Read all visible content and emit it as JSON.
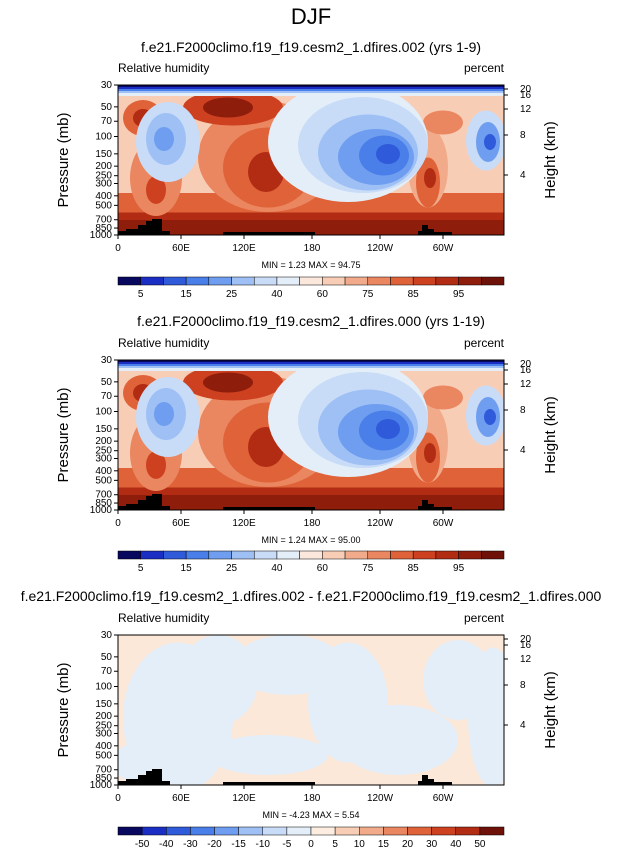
{
  "figure": {
    "title": "DJF"
  },
  "chart_data": [
    {
      "type": "heatmap",
      "title": "f.e21.F2000climo.f19_f19.cesm2_1.dfires.002 (yrs 1-9)",
      "left_label": "Relative humidity",
      "right_label": "percent",
      "xlabel": "",
      "ylabel": "Pressure (mb)",
      "y2label": "Height (km)",
      "x_ticks": [
        "0",
        "60E",
        "120E",
        "180",
        "120W",
        "60W"
      ],
      "y_ticks": [
        "30",
        "50",
        "70",
        "100",
        "150",
        "200",
        "250",
        "300",
        "400",
        "500",
        "700",
        "850",
        "1000"
      ],
      "y2_ticks": [
        "20",
        "16",
        "12",
        "8",
        "4"
      ],
      "ylim": [
        30,
        1000
      ],
      "min_max": "MIN =   1.23   MAX =  94.75",
      "stats": {
        "min": 1.23,
        "max": 94.75
      },
      "colorbar": {
        "labels": [
          "5",
          "15",
          "25",
          "40",
          "60",
          "75",
          "85",
          "95"
        ],
        "colors": [
          "#08085e",
          "#1a2ec4",
          "#2f5bdb",
          "#4a7ee8",
          "#6f9ef0",
          "#9fc0f5",
          "#c8dcf8",
          "#e4eef8",
          "#fbe7dc",
          "#f8cdb6",
          "#f1ab8a",
          "#ea8660",
          "#df6238",
          "#cd4120",
          "#b22c14",
          "#8f1d0c",
          "#6e1209"
        ]
      }
    },
    {
      "type": "heatmap",
      "title": "f.e21.F2000climo.f19_f19.cesm2_1.dfires.000 (yrs 1-19)",
      "left_label": "Relative humidity",
      "right_label": "percent",
      "xlabel": "",
      "ylabel": "Pressure (mb)",
      "y2label": "Height (km)",
      "x_ticks": [
        "0",
        "60E",
        "120E",
        "180",
        "120W",
        "60W"
      ],
      "y_ticks": [
        "30",
        "50",
        "70",
        "100",
        "150",
        "200",
        "250",
        "300",
        "400",
        "500",
        "700",
        "850",
        "1000"
      ],
      "y2_ticks": [
        "20",
        "16",
        "12",
        "8",
        "4"
      ],
      "ylim": [
        30,
        1000
      ],
      "min_max": "MIN =   1.24   MAX =  95.00",
      "stats": {
        "min": 1.24,
        "max": 95.0
      },
      "colorbar": {
        "labels": [
          "5",
          "15",
          "25",
          "40",
          "60",
          "75",
          "85",
          "95"
        ],
        "colors": [
          "#08085e",
          "#1a2ec4",
          "#2f5bdb",
          "#4a7ee8",
          "#6f9ef0",
          "#9fc0f5",
          "#c8dcf8",
          "#e4eef8",
          "#fbe7dc",
          "#f8cdb6",
          "#f1ab8a",
          "#ea8660",
          "#df6238",
          "#cd4120",
          "#b22c14",
          "#8f1d0c",
          "#6e1209"
        ]
      }
    },
    {
      "type": "heatmap",
      "title": "f.e21.F2000climo.f19_f19.cesm2_1.dfires.002 - f.e21.F2000climo.f19_f19.cesm2_1.dfires.000",
      "left_label": "Relative humidity",
      "right_label": "percent",
      "xlabel": "",
      "ylabel": "Pressure (mb)",
      "y2label": "Height (km)",
      "x_ticks": [
        "0",
        "60E",
        "120E",
        "180",
        "120W",
        "60W"
      ],
      "y_ticks": [
        "30",
        "50",
        "70",
        "100",
        "150",
        "200",
        "250",
        "300",
        "400",
        "500",
        "700",
        "850",
        "1000"
      ],
      "y2_ticks": [
        "20",
        "16",
        "12",
        "8",
        "4"
      ],
      "ylim": [
        30,
        1000
      ],
      "min_max": "MIN =  -4.23   MAX =   5.54",
      "stats": {
        "min": -4.23,
        "max": 5.54
      },
      "colorbar": {
        "labels": [
          "-50",
          "-40",
          "-30",
          "-20",
          "-15",
          "-10",
          "-5",
          "0",
          "5",
          "10",
          "15",
          "20",
          "30",
          "40",
          "50"
        ],
        "colors": [
          "#08085e",
          "#1a2ec4",
          "#2f5bdb",
          "#4a7ee8",
          "#6f9ef0",
          "#9fc0f5",
          "#c8dcf8",
          "#e4eef8",
          "#fdece0",
          "#f8cdb6",
          "#f1ab8a",
          "#ea8660",
          "#df6238",
          "#cd4120",
          "#b22c14",
          "#6e1209"
        ]
      }
    }
  ]
}
